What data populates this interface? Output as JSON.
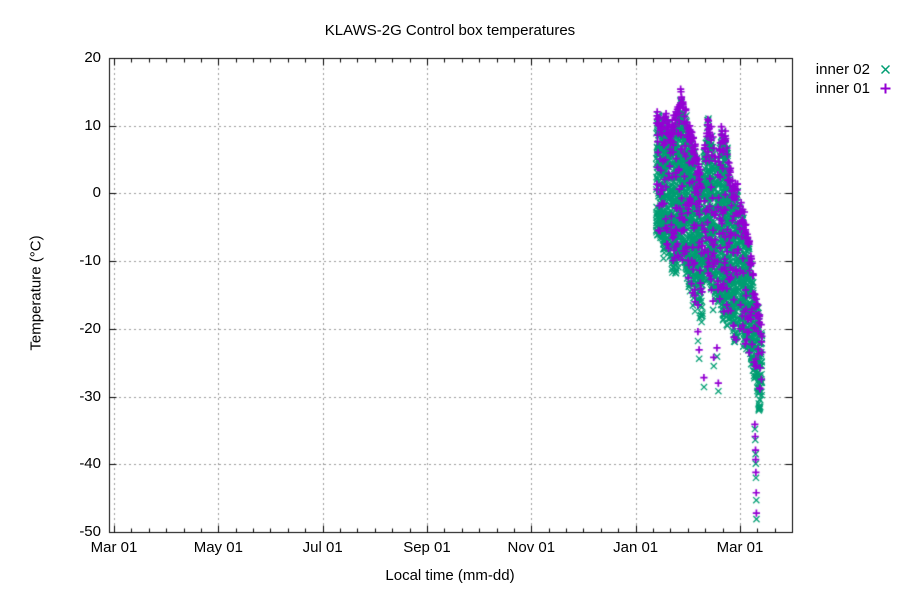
{
  "title": "KLAWS-2G Control box temperatures",
  "x_axis": {
    "label": "Local time (mm-dd)",
    "tick_labels": [
      "Mar 01",
      "May 01",
      "Jul 01",
      "Sep 01",
      "Nov 01",
      "Jan 01",
      "Mar 01"
    ],
    "minor_divisions_per_interval": 6
  },
  "y_axis": {
    "label": "Temperature (°C)",
    "ticks": [
      {
        "label": "20",
        "value": 20
      },
      {
        "label": "10",
        "value": 10
      },
      {
        "label": "0",
        "value": 0
      },
      {
        "label": "-10",
        "value": -10
      },
      {
        "label": "-20",
        "value": -20
      },
      {
        "label": "-30",
        "value": -30
      },
      {
        "label": "-40",
        "value": -40
      },
      {
        "label": "-50",
        "value": -50
      }
    ]
  },
  "legend": {
    "items": [
      {
        "label": "inner 02",
        "marker": "cross"
      },
      {
        "label": "inner 01",
        "marker": "plus"
      }
    ]
  },
  "colors": {
    "inner02": "#009E73",
    "inner01": "#9400D3",
    "grid": "#9b9b9b",
    "axis": "#000000",
    "background": "#ffffff",
    "text": "#000000"
  },
  "chart_data": {
    "type": "scatter",
    "title": "KLAWS-2G Control box temperatures",
    "xlabel": "Local time (mm-dd)",
    "ylabel": "Temperature (°C)",
    "x_tick_labels": [
      "Mar 01",
      "May 01",
      "Jul 01",
      "Sep 01",
      "Nov 01",
      "Jan 01",
      "Mar 01"
    ],
    "ylim": [
      -50,
      20
    ],
    "grid": true,
    "legend_position": "outside-top-right",
    "series": [
      {
        "name": "inner 02",
        "marker": "cross",
        "color": "#009E73"
      },
      {
        "name": "inner 01",
        "marker": "plus",
        "color": "#9400D3"
      }
    ],
    "data_description": "Dense diurnal scatter of control-box temperatures from mid-January to mid-March; both sensors track closely, inner 01 (+) caps the daily maxima slightly above inner 02 (x). Clusters given as envelope control points [day_since_Jan_01, top_degC, bottom_degC]; overall max ~+16 degC (late Jan), dense minimum ~-32.5 degC, sparse tail readings to ~-48 degC (mid-Mar).",
    "clusters": [
      {
        "range": [
          12.5,
          38.5
        ],
        "envelope": [
          [
            12.5,
            10.5,
            -6
          ],
          [
            14,
            11.5,
            -7.5
          ],
          [
            16,
            9.5,
            -8.5
          ],
          [
            18,
            10.5,
            -9.5
          ],
          [
            20,
            9,
            -10.5
          ],
          [
            22,
            10.5,
            -11
          ],
          [
            24,
            12,
            -12
          ],
          [
            26,
            14,
            -11
          ],
          [
            27,
            16,
            -10.5
          ],
          [
            28,
            13,
            -12
          ],
          [
            30,
            10.5,
            -13.5
          ],
          [
            32,
            8.5,
            -15
          ],
          [
            34,
            6.5,
            -16
          ],
          [
            36,
            4.5,
            -17
          ],
          [
            38.5,
            1.5,
            -18.5
          ]
        ]
      },
      {
        "range": [
          40.2,
          59.7
        ],
        "envelope": [
          [
            40.2,
            7,
            -12
          ],
          [
            42,
            10.5,
            -13
          ],
          [
            44.5,
            10,
            -14
          ],
          [
            46,
            6,
            -15
          ],
          [
            48,
            4.5,
            -16
          ],
          [
            50,
            8.5,
            -17
          ],
          [
            52,
            7.5,
            -18
          ],
          [
            54,
            5.5,
            -19
          ],
          [
            56,
            2,
            -20
          ],
          [
            58,
            0.5,
            -21.5
          ],
          [
            59.7,
            0,
            -22.5
          ]
        ]
      },
      {
        "range": [
          61.2,
          74
        ],
        "envelope": [
          [
            61.2,
            -2,
            -21.5
          ],
          [
            63,
            -4,
            -22.5
          ],
          [
            65,
            -7,
            -23
          ],
          [
            67,
            -10,
            -24
          ],
          [
            68.5,
            -13,
            -25.5
          ],
          [
            70,
            -16,
            -28
          ],
          [
            71.5,
            -18,
            -30.5
          ],
          [
            73,
            -21,
            -32
          ],
          [
            74,
            -24,
            -32.5
          ]
        ]
      }
    ],
    "gaps": [
      [
        38.6,
        40.1
      ],
      [
        46.9,
        47.9
      ],
      [
        59.8,
        61.1
      ]
    ],
    "outlier_pairs_format": "[day_since_Jan_01, inner01_plus_degC, inner02_cross_degC]",
    "outlier_pairs": [
      [
        34.6,
        -16.0,
        -17.4
      ],
      [
        36.3,
        -20.4,
        -21.8
      ],
      [
        37.0,
        -23.1,
        -24.4
      ],
      [
        39.8,
        -27.2,
        -28.6
      ],
      [
        45.1,
        -15.9,
        -17.2
      ],
      [
        45.5,
        -24.2,
        -25.5
      ],
      [
        47.4,
        -22.8,
        -24.1
      ],
      [
        48.0,
        -14.2,
        -15.5
      ],
      [
        48.2,
        -28.0,
        -29.2
      ],
      [
        69.5,
        -34.1,
        -34.8
      ],
      [
        69.7,
        -35.9,
        -36.4
      ],
      [
        69.9,
        -37.9,
        -38.5
      ],
      [
        70.0,
        -39.3,
        -39.9
      ],
      [
        70.1,
        -41.2,
        -42.0
      ],
      [
        70.3,
        -44.2,
        -45.3
      ],
      [
        70.4,
        -47.2,
        -48.1
      ]
    ],
    "max_temp_c": 16,
    "min_temp_c": -48
  }
}
